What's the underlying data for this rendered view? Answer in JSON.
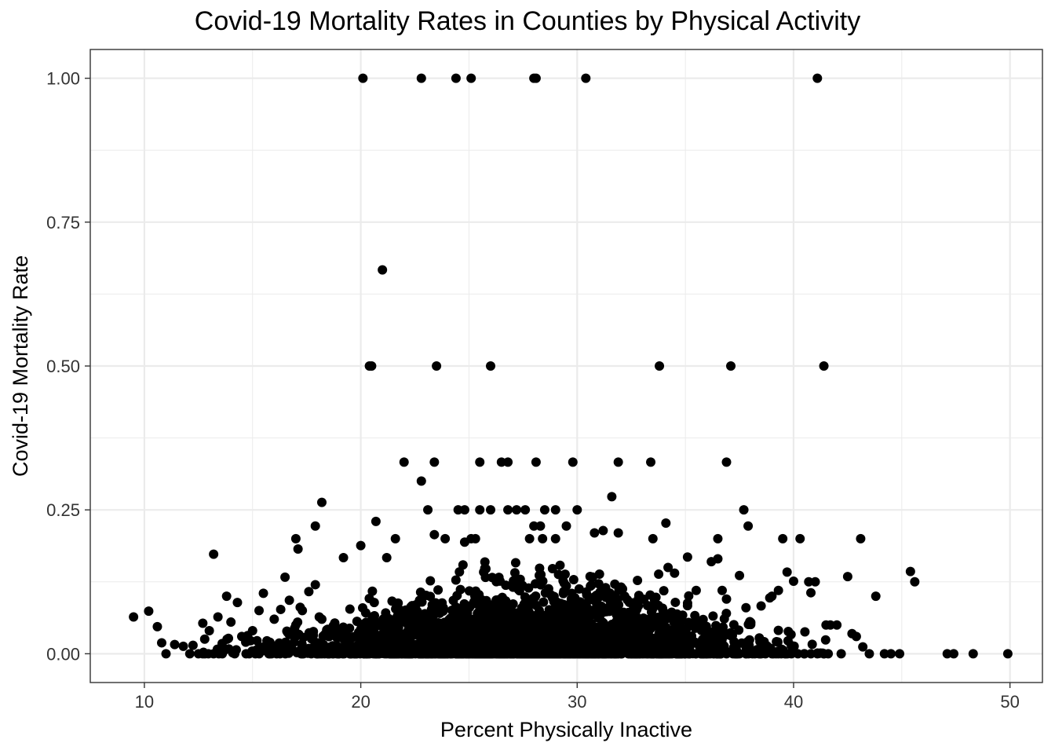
{
  "chart_data": {
    "type": "scatter",
    "title": "Covid-19 Mortality Rates in Counties by Physical Activity",
    "xlabel": "Percent Physically Inactive",
    "ylabel": "Covid-19 Mortality Rate",
    "xlim": [
      7.5,
      51.5
    ],
    "ylim": [
      -0.05,
      1.05
    ],
    "x_ticks": [
      10,
      20,
      30,
      40,
      50
    ],
    "y_ticks": [
      0.0,
      0.25,
      0.5,
      0.75,
      1.0
    ],
    "y_tick_labels": [
      "0.00",
      "0.25",
      "0.50",
      "0.75",
      "1.00"
    ],
    "grid": true,
    "point_color": "#000000",
    "grid_color": "#ebebeb",
    "points": [
      [
        20.1,
        1.0
      ],
      [
        22.8,
        1.0
      ],
      [
        24.4,
        1.0
      ],
      [
        25.1,
        1.0
      ],
      [
        28.0,
        1.0
      ],
      [
        28.1,
        1.0
      ],
      [
        30.4,
        1.0
      ],
      [
        41.1,
        1.0
      ],
      [
        21.0,
        0.667
      ],
      [
        20.4,
        0.5
      ],
      [
        20.5,
        0.5
      ],
      [
        23.5,
        0.5
      ],
      [
        26.0,
        0.5
      ],
      [
        33.8,
        0.5
      ],
      [
        37.1,
        0.5
      ],
      [
        41.4,
        0.5
      ],
      [
        22.0,
        0.333
      ],
      [
        23.4,
        0.333
      ],
      [
        25.5,
        0.333
      ],
      [
        26.5,
        0.333
      ],
      [
        26.8,
        0.333
      ],
      [
        28.1,
        0.333
      ],
      [
        29.8,
        0.333
      ],
      [
        31.9,
        0.333
      ],
      [
        33.4,
        0.333
      ],
      [
        36.9,
        0.333
      ],
      [
        22.8,
        0.3
      ],
      [
        18.2,
        0.263
      ],
      [
        31.6,
        0.273
      ],
      [
        23.1,
        0.25
      ],
      [
        24.5,
        0.25
      ],
      [
        24.8,
        0.25
      ],
      [
        25.5,
        0.25
      ],
      [
        26.0,
        0.25
      ],
      [
        26.8,
        0.25
      ],
      [
        27.2,
        0.25
      ],
      [
        27.6,
        0.25
      ],
      [
        28.5,
        0.25
      ],
      [
        29.0,
        0.25
      ],
      [
        30.0,
        0.25
      ],
      [
        37.7,
        0.25
      ],
      [
        20.7,
        0.23
      ],
      [
        17.9,
        0.222
      ],
      [
        28.0,
        0.222
      ],
      [
        28.3,
        0.222
      ],
      [
        29.5,
        0.222
      ],
      [
        37.9,
        0.222
      ],
      [
        34.1,
        0.227
      ],
      [
        13.2,
        0.173
      ],
      [
        17.0,
        0.2
      ],
      [
        17.1,
        0.182
      ],
      [
        19.2,
        0.167
      ],
      [
        20.0,
        0.188
      ],
      [
        21.6,
        0.2
      ],
      [
        23.9,
        0.2
      ],
      [
        25.1,
        0.2
      ],
      [
        25.3,
        0.2
      ],
      [
        27.8,
        0.2
      ],
      [
        28.4,
        0.2
      ],
      [
        29.0,
        0.2
      ],
      [
        33.5,
        0.2
      ],
      [
        36.5,
        0.2
      ],
      [
        39.5,
        0.2
      ],
      [
        40.3,
        0.2
      ],
      [
        43.1,
        0.2
      ],
      [
        21.2,
        0.167
      ],
      [
        23.4,
        0.207
      ],
      [
        24.8,
        0.194
      ],
      [
        30.8,
        0.21
      ],
      [
        31.2,
        0.214
      ],
      [
        31.9,
        0.21
      ],
      [
        9.5,
        0.064
      ],
      [
        10.2,
        0.074
      ],
      [
        10.6,
        0.047
      ],
      [
        10.8,
        0.019
      ],
      [
        11.0,
        0.0
      ],
      [
        11.4,
        0.016
      ],
      [
        11.8,
        0.013
      ],
      [
        12.1,
        0.0
      ],
      [
        12.5,
        0.0
      ],
      [
        12.7,
        0.053
      ],
      [
        12.8,
        0.0
      ],
      [
        13.0,
        0.04
      ],
      [
        13.2,
        0.0
      ],
      [
        13.4,
        0.064
      ],
      [
        13.6,
        0.0
      ],
      [
        13.8,
        0.1
      ],
      [
        14.0,
        0.055
      ],
      [
        14.3,
        0.089
      ],
      [
        14.5,
        0.03
      ],
      [
        14.7,
        0.0
      ],
      [
        15.0,
        0.04
      ],
      [
        15.3,
        0.075
      ],
      [
        15.5,
        0.105
      ],
      [
        15.8,
        0.02
      ],
      [
        16.0,
        0.06
      ],
      [
        16.3,
        0.077
      ],
      [
        16.5,
        0.133
      ],
      [
        16.7,
        0.093
      ],
      [
        17.0,
        0.05
      ],
      [
        17.3,
        0.075
      ],
      [
        17.6,
        0.108
      ],
      [
        17.9,
        0.12
      ],
      [
        18.2,
        0.06
      ],
      [
        41.4,
        0.0
      ],
      [
        41.6,
        0.0
      ],
      [
        42.0,
        0.05
      ],
      [
        42.2,
        0.0
      ],
      [
        42.5,
        0.134
      ],
      [
        42.7,
        0.035
      ],
      [
        42.9,
        0.03
      ],
      [
        43.2,
        0.012
      ],
      [
        43.5,
        0.0
      ],
      [
        43.8,
        0.1
      ],
      [
        44.2,
        0.0
      ],
      [
        44.5,
        0.0
      ],
      [
        44.9,
        0.0
      ],
      [
        45.4,
        0.143
      ],
      [
        45.6,
        0.125
      ],
      [
        47.1,
        0.0
      ],
      [
        47.4,
        0.0
      ],
      [
        48.3,
        0.0
      ],
      [
        49.9,
        0.0
      ],
      [
        40.7,
        0.125
      ],
      [
        41.0,
        0.125
      ],
      [
        40.8,
        0.106
      ],
      [
        41.5,
        0.05
      ],
      [
        41.7,
        0.05
      ],
      [
        39.0,
        0.1
      ],
      [
        39.3,
        0.11
      ],
      [
        39.7,
        0.142
      ],
      [
        40.0,
        0.126
      ],
      [
        38.5,
        0.083
      ],
      [
        38.9,
        0.097
      ],
      [
        37.8,
        0.08
      ],
      [
        37.5,
        0.136
      ],
      [
        36.7,
        0.11
      ],
      [
        36.9,
        0.095
      ],
      [
        36.5,
        0.165
      ],
      [
        36.2,
        0.16
      ],
      [
        35.5,
        0.11
      ],
      [
        35.1,
        0.168
      ],
      [
        34.5,
        0.14
      ],
      [
        34.2,
        0.15
      ]
    ]
  }
}
